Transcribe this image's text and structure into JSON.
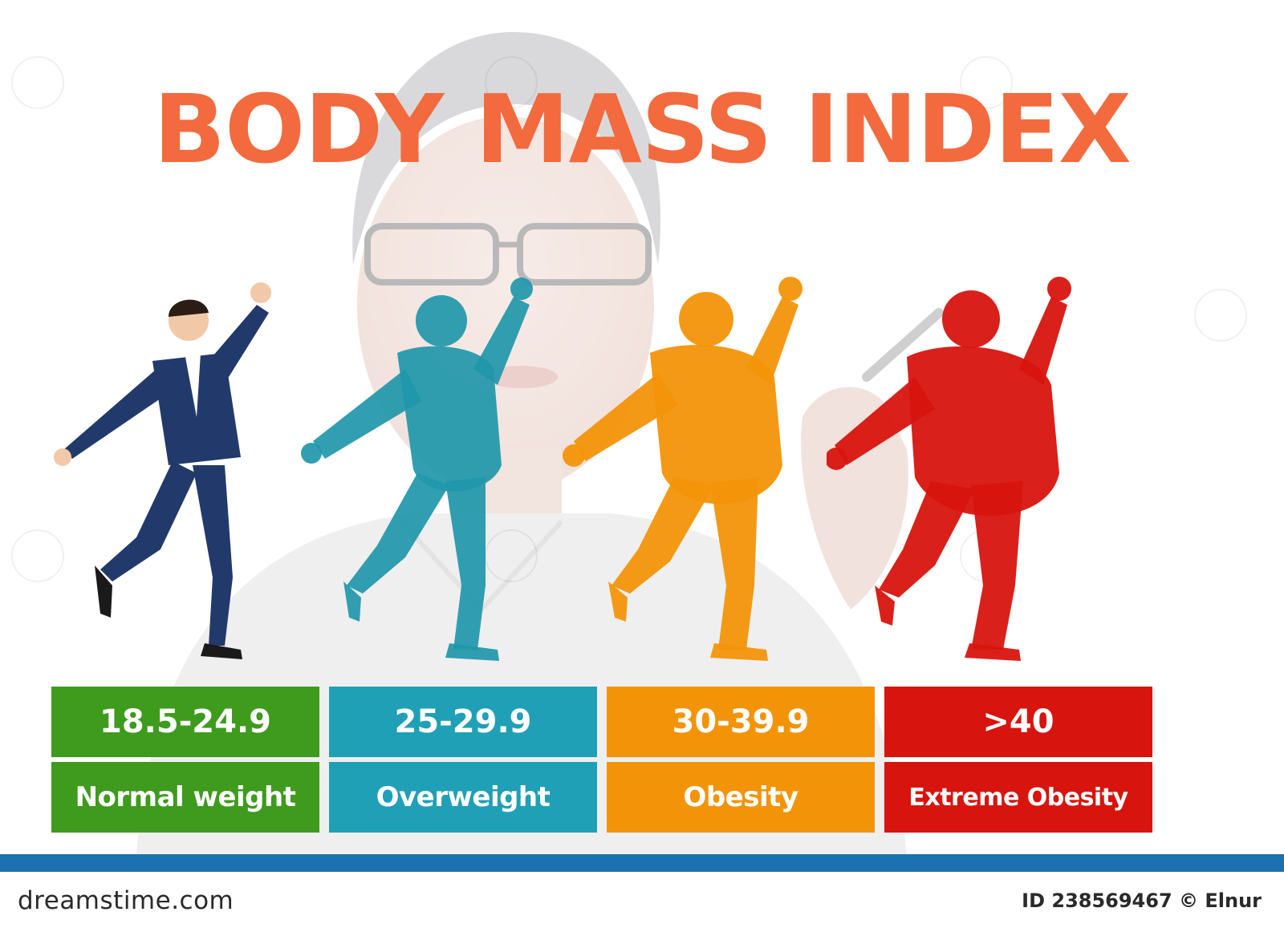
{
  "title": "BODY MASS INDEX",
  "colors": {
    "title": "#f26a3d",
    "normal": "#3e9b1d",
    "overweight": "#1fa0b6",
    "obesity": "#f39408",
    "extreme": "#d8140e",
    "footer_bar": "#1a73b0"
  },
  "categories": [
    {
      "range": "18.5-24.9",
      "label": "Normal weight"
    },
    {
      "range": "25-29.9",
      "label": "Overweight"
    },
    {
      "range": "30-39.9",
      "label": "Obesity"
    },
    {
      "range": ">40",
      "label": "Extreme Obesity"
    }
  ],
  "figures": [
    {
      "icon": "businessman-photo",
      "color": "#223a6b"
    },
    {
      "icon": "overweight-silhouette",
      "color": "#1f97aa"
    },
    {
      "icon": "obese-silhouette",
      "color": "#f39408"
    },
    {
      "icon": "extreme-obese-silhouette",
      "color": "#d8140e"
    }
  ],
  "footer": {
    "brand": "dreamstime.com",
    "credit": "ID 238569467 © Elnur"
  }
}
